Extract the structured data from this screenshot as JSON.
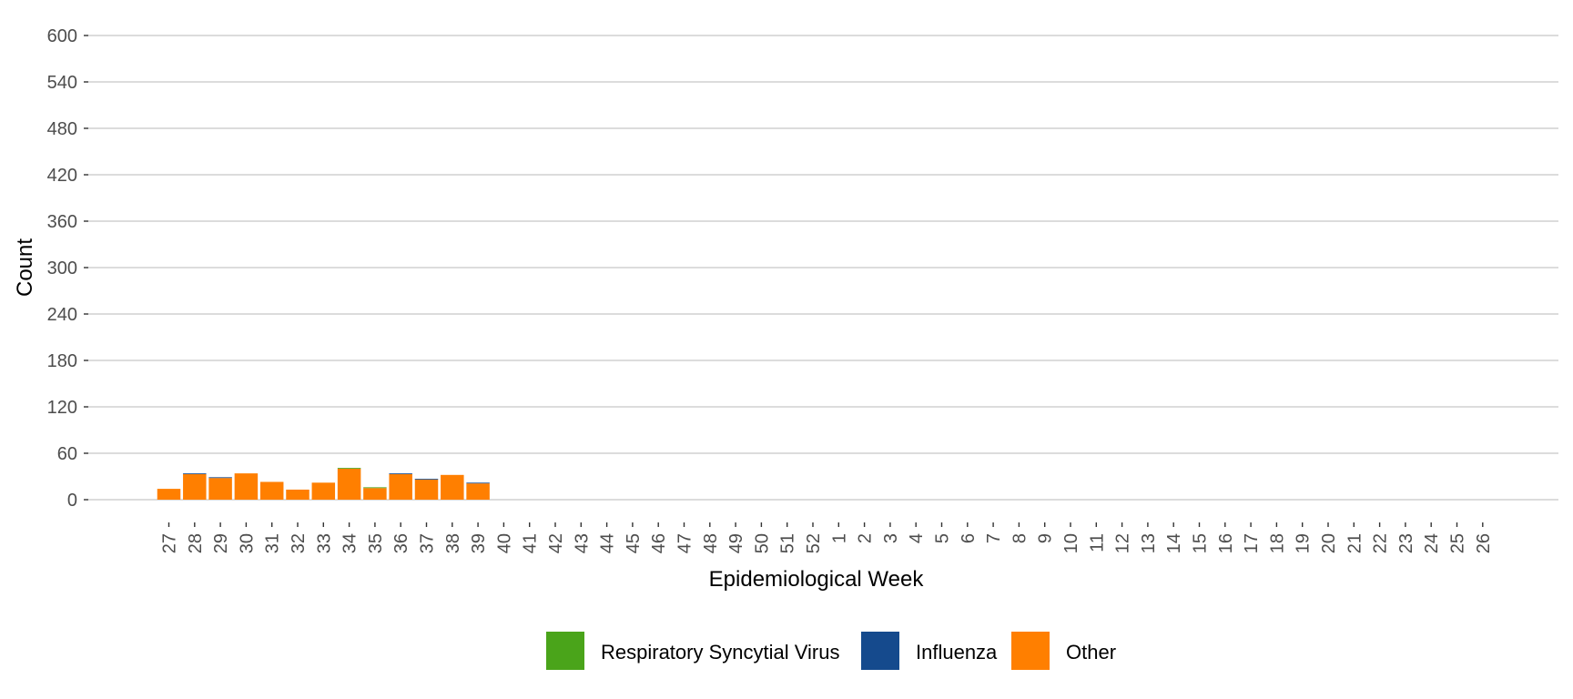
{
  "chart_data": {
    "type": "bar",
    "stacked": true,
    "xlabel": "Epidemiological Week",
    "ylabel": "Count",
    "ylim": [
      0,
      600
    ],
    "yticks": [
      0,
      60,
      120,
      180,
      240,
      300,
      360,
      420,
      480,
      540,
      600
    ],
    "grid": true,
    "legend_position": "bottom",
    "categories": [
      "27",
      "28",
      "29",
      "30",
      "31",
      "32",
      "33",
      "34",
      "35",
      "36",
      "37",
      "38",
      "39",
      "40",
      "41",
      "42",
      "43",
      "44",
      "45",
      "46",
      "47",
      "48",
      "49",
      "50",
      "51",
      "52",
      "1",
      "2",
      "3",
      "4",
      "5",
      "6",
      "7",
      "8",
      "9",
      "10",
      "11",
      "12",
      "13",
      "14",
      "15",
      "16",
      "17",
      "18",
      "19",
      "20",
      "21",
      "22",
      "23",
      "24",
      "25",
      "26"
    ],
    "series": [
      {
        "name": "Other",
        "color": "#FF7F00",
        "values": [
          14,
          33,
          28,
          34,
          23,
          13,
          22,
          40,
          15,
          33,
          26,
          32,
          21,
          0,
          0,
          0,
          0,
          0,
          0,
          0,
          0,
          0,
          0,
          0,
          0,
          0,
          0,
          0,
          0,
          0,
          0,
          0,
          0,
          0,
          0,
          0,
          0,
          0,
          0,
          0,
          0,
          0,
          0,
          0,
          0,
          0,
          0,
          0,
          0,
          0,
          0,
          0
        ]
      },
      {
        "name": "Influenza",
        "color": "#154A8D",
        "values": [
          0,
          1,
          1,
          0,
          0,
          0,
          0,
          0,
          0,
          1,
          1,
          0,
          1,
          0,
          0,
          0,
          0,
          0,
          0,
          0,
          0,
          0,
          0,
          0,
          0,
          0,
          0,
          0,
          0,
          0,
          0,
          0,
          0,
          0,
          0,
          0,
          0,
          0,
          0,
          0,
          0,
          0,
          0,
          0,
          0,
          0,
          0,
          0,
          0,
          0,
          0,
          0
        ]
      },
      {
        "name": "Respiratory Syncytial Virus",
        "color": "#4AA41A",
        "values": [
          0,
          0,
          0,
          0,
          0,
          0,
          0,
          1,
          1,
          0,
          0,
          0,
          0,
          0,
          0,
          0,
          0,
          0,
          0,
          0,
          0,
          0,
          0,
          0,
          0,
          0,
          0,
          0,
          0,
          0,
          0,
          0,
          0,
          0,
          0,
          0,
          0,
          0,
          0,
          0,
          0,
          0,
          0,
          0,
          0,
          0,
          0,
          0,
          0,
          0,
          0,
          0
        ]
      }
    ],
    "legend_order": [
      "Respiratory Syncytial Virus",
      "Influenza",
      "Other"
    ]
  }
}
